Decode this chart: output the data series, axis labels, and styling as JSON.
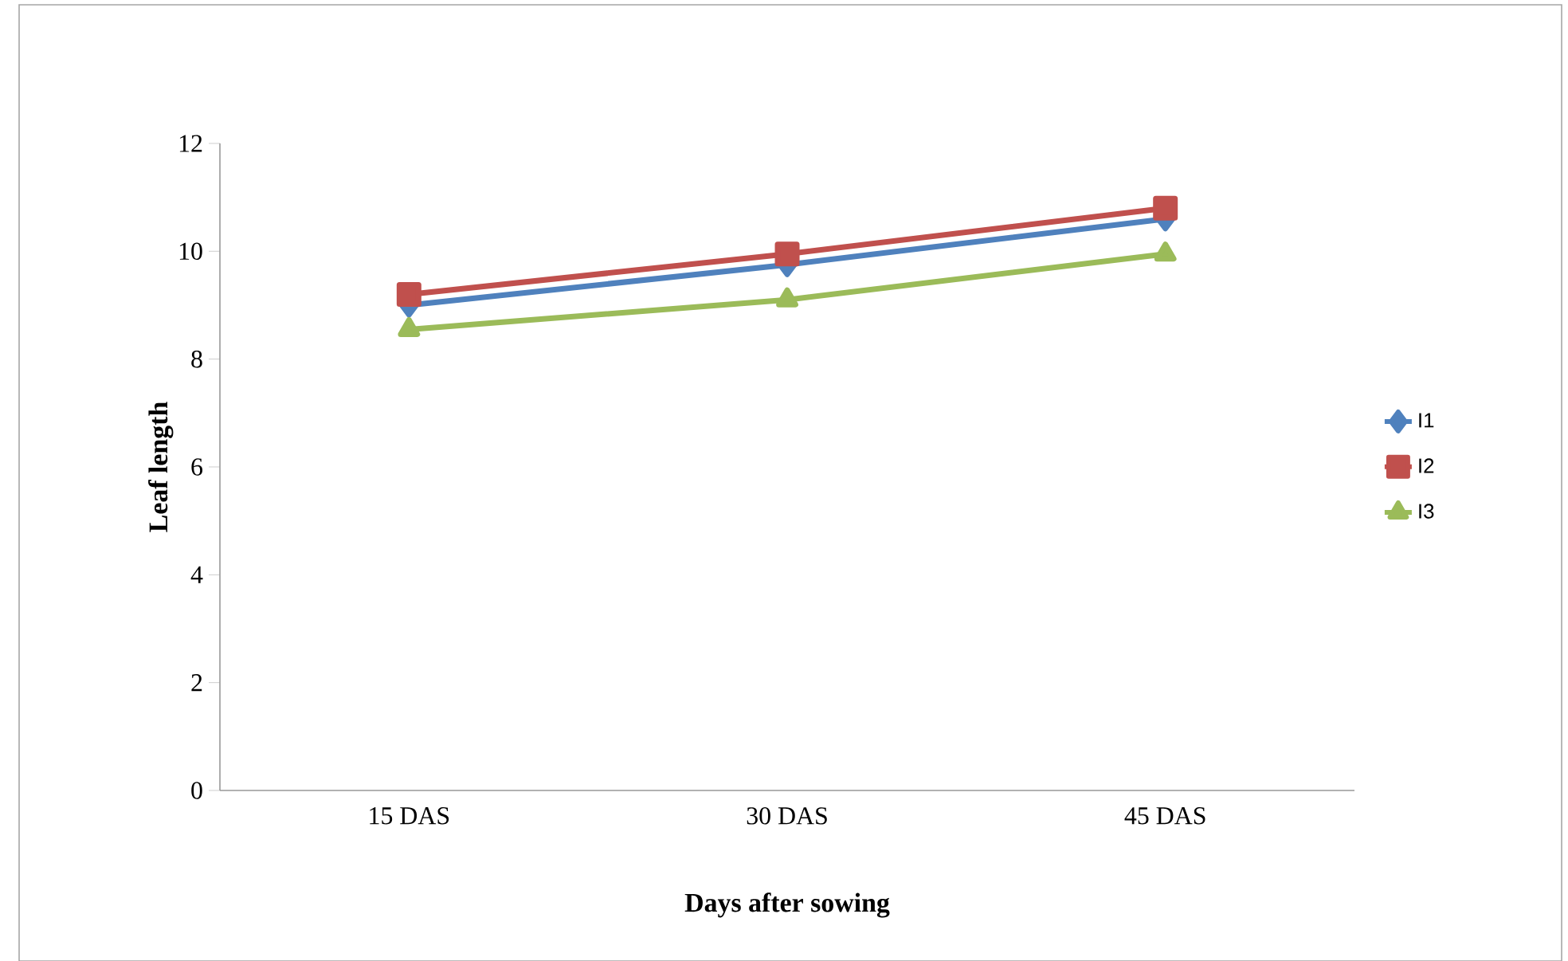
{
  "chart_data": {
    "type": "line",
    "xlabel": "Days after sowing",
    "ylabel": "Leaf length",
    "categories": [
      "15 DAS",
      "30 DAS",
      "45 DAS"
    ],
    "series": [
      {
        "name": "I1",
        "color": "#4f81bd",
        "marker": "diamond",
        "values": [
          9.0,
          9.75,
          10.6
        ]
      },
      {
        "name": "I2",
        "color": "#c0504d",
        "marker": "square",
        "values": [
          9.2,
          9.95,
          10.8
        ]
      },
      {
        "name": "I3",
        "color": "#9bbb59",
        "marker": "triangle",
        "values": [
          8.55,
          9.1,
          9.95
        ]
      }
    ],
    "ylim": [
      0,
      12
    ],
    "yticks": [
      0,
      2,
      4,
      6,
      8,
      10,
      12
    ],
    "grid": false,
    "legend": "right",
    "line_style": "solid"
  }
}
